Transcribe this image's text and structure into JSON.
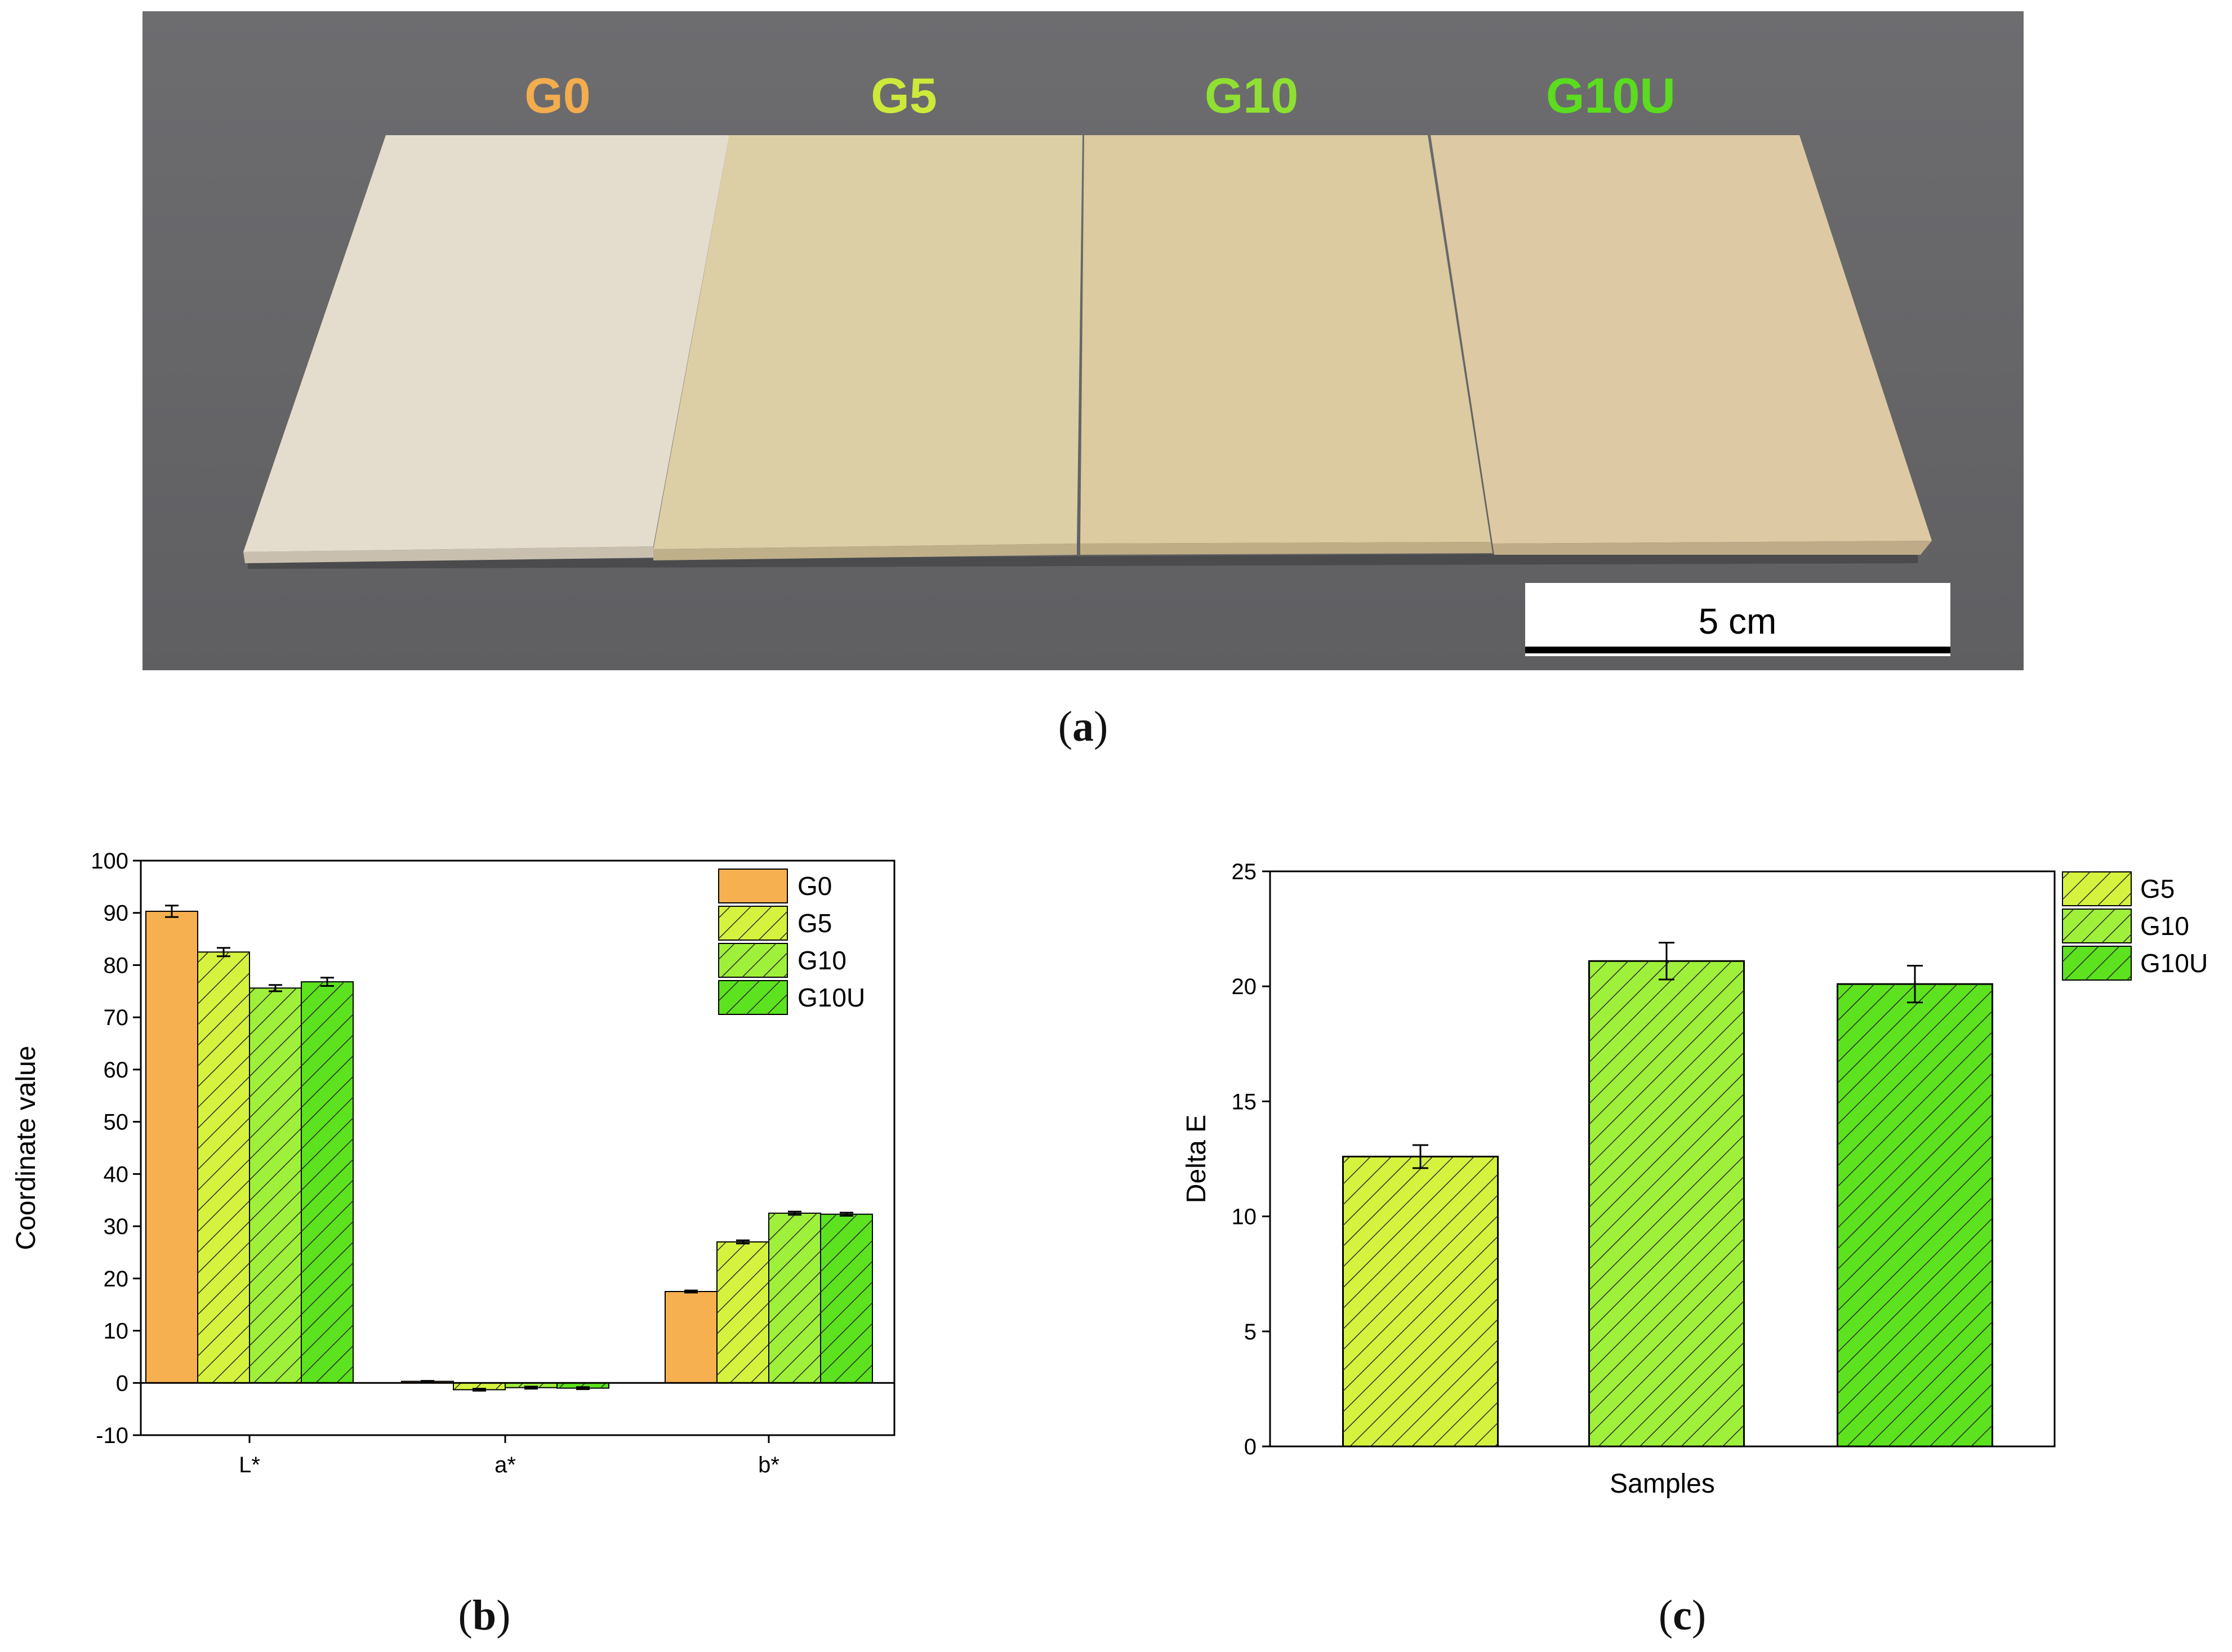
{
  "panels": {
    "a": {
      "open": "(",
      "letter": "a",
      "close": ")"
    },
    "b": {
      "open": "(",
      "letter": "b",
      "close": ")"
    },
    "c": {
      "open": "(",
      "letter": "c",
      "close": ")"
    }
  },
  "photo": {
    "sample_labels": [
      {
        "text": "G0",
        "color": "#f3ac4e"
      },
      {
        "text": "G5",
        "color": "#cdea3a"
      },
      {
        "text": "G10",
        "color": "#8fe032"
      },
      {
        "text": "G10U",
        "color": "#5bdc1e"
      }
    ],
    "scale_bar_label": "5 cm",
    "colors": {
      "background": "#6a6a6c",
      "board_g0": "#e4dccd",
      "board_g5": "#dccfa6",
      "board_g10": "#dccaa0",
      "board_g10u": "#ddc9a3"
    }
  },
  "chart_data": [
    {
      "type": "bar",
      "panel": "b",
      "categories": [
        "L*",
        "a*",
        "b*"
      ],
      "ylabel": "Coordinate value",
      "xlabel": "",
      "ylim": [
        -10,
        100
      ],
      "yticks": [
        -10,
        0,
        10,
        20,
        30,
        40,
        50,
        60,
        70,
        80,
        90,
        100
      ],
      "legend": "top-right",
      "series": [
        {
          "name": "G0",
          "color": "#f7b04f",
          "hatch": false,
          "values": [
            90.3,
            0.3,
            17.5
          ],
          "errors": [
            1.1,
            0.1,
            0.2
          ]
        },
        {
          "name": "G5",
          "color": "#d5f23f",
          "hatch": true,
          "values": [
            82.5,
            -1.3,
            27.0
          ],
          "errors": [
            0.8,
            0.2,
            0.3
          ]
        },
        {
          "name": "G10",
          "color": "#9ef03a",
          "hatch": true,
          "values": [
            75.6,
            -0.9,
            32.5
          ],
          "errors": [
            0.6,
            0.2,
            0.3
          ]
        },
        {
          "name": "G10U",
          "color": "#5ce21e",
          "hatch": true,
          "values": [
            76.8,
            -1.0,
            32.3
          ],
          "errors": [
            0.8,
            0.2,
            0.3
          ]
        }
      ]
    },
    {
      "type": "bar",
      "panel": "c",
      "categories": [
        "G5",
        "G10",
        "G10U"
      ],
      "xlabel": "Samples",
      "ylabel": "Delta E",
      "ylim": [
        0,
        25
      ],
      "yticks": [
        0,
        5,
        10,
        15,
        20,
        25
      ],
      "legend": "outside-right",
      "series": [
        {
          "name": "G5",
          "color": "#d5f23f",
          "value": 12.6,
          "error": 0.5
        },
        {
          "name": "G10",
          "color": "#9ef03a",
          "value": 21.1,
          "error": 0.8
        },
        {
          "name": "G10U",
          "color": "#5ce21e",
          "value": 20.1,
          "error": 0.8
        }
      ]
    }
  ]
}
